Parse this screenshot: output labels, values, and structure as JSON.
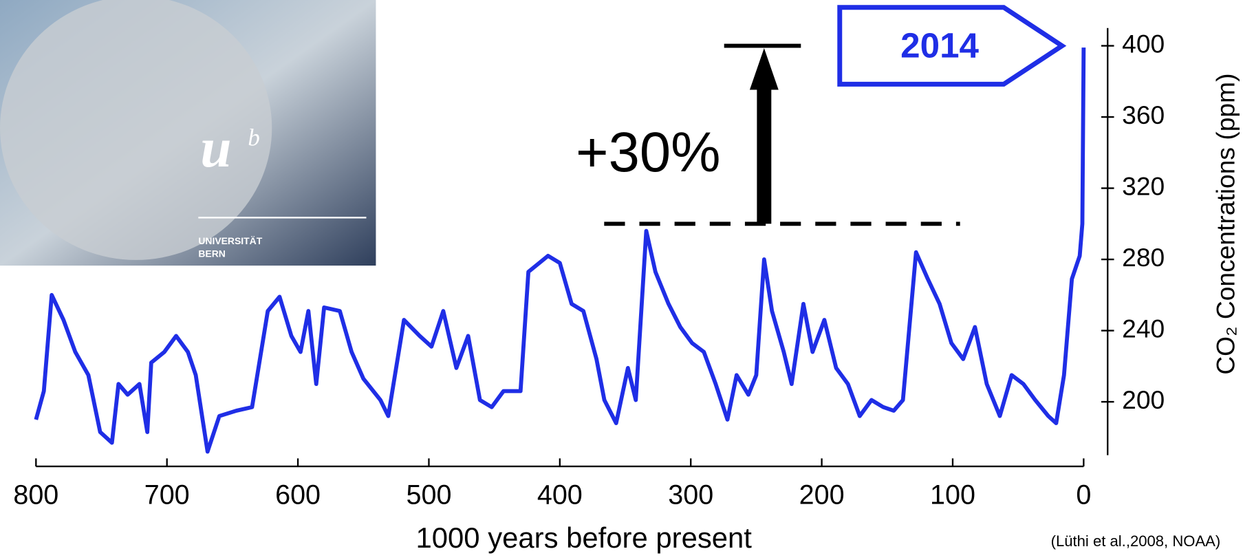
{
  "chart_data": {
    "type": "line",
    "x_label": "1000 years before present",
    "y_label": "CO₂ Concentrations (ppm)",
    "source": "(Lüthi et al.,2008, NOAA)",
    "x": [
      800,
      794,
      788,
      779,
      770,
      760,
      751,
      742,
      737,
      730,
      721,
      715,
      712,
      702,
      693,
      684,
      678,
      669,
      660,
      647,
      635,
      623,
      614,
      605,
      598,
      592,
      586,
      580,
      568,
      559,
      550,
      537,
      531,
      519,
      507,
      498,
      489,
      479,
      470,
      461,
      452,
      443,
      430,
      424,
      409,
      400,
      391,
      382,
      372,
      366,
      357,
      348,
      342,
      334,
      327,
      317,
      308,
      299,
      290,
      281,
      272,
      265,
      256,
      250,
      244,
      238,
      229,
      223,
      214,
      207,
      198,
      189,
      180,
      171,
      162,
      153,
      145,
      138,
      128,
      119,
      110,
      101,
      92,
      83,
      74,
      64,
      55,
      46,
      37,
      27,
      21,
      15,
      9,
      3,
      1,
      0
    ],
    "series": [
      {
        "name": "CO2",
        "color": "#1f2ee6",
        "values": [
          190,
          206,
          260,
          246,
          228,
          215,
          183,
          177,
          210,
          204,
          210,
          183,
          222,
          228,
          237,
          228,
          215,
          172,
          192,
          195,
          197,
          251,
          259,
          237,
          228,
          251,
          210,
          253,
          251,
          228,
          213,
          201,
          192,
          246,
          237,
          231,
          251,
          219,
          237,
          201,
          197,
          206,
          206,
          273,
          282,
          278,
          255,
          251,
          224,
          201,
          188,
          219,
          201,
          296,
          273,
          255,
          242,
          233,
          228,
          210,
          190,
          215,
          204,
          215,
          280,
          251,
          228,
          210,
          255,
          228,
          246,
          219,
          210,
          192,
          201,
          197,
          195,
          201,
          284,
          269,
          255,
          233,
          224,
          242,
          210,
          192,
          215,
          210,
          201,
          192,
          188,
          215,
          269,
          282,
          300,
          399
        ]
      }
    ],
    "xlim": [
      800,
      0
    ],
    "xticks": [
      800,
      700,
      600,
      500,
      400,
      300,
      200,
      100,
      0
    ],
    "ylim": [
      170,
      410
    ],
    "yticks": [
      200,
      240,
      280,
      320,
      360,
      400
    ],
    "annotations": [
      {
        "text": "+30%",
        "x": 244,
        "from": 300,
        "to": 400
      },
      {
        "text": "2014",
        "x": 0,
        "y": 400
      }
    ],
    "logo": {
      "mark": "u",
      "superscript": "b",
      "lines": [
        "UNIVERSITÄT",
        "BERN"
      ]
    }
  }
}
